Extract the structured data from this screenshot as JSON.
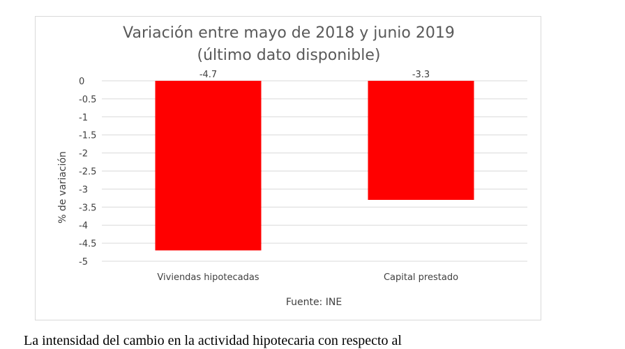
{
  "chart_data": {
    "type": "bar",
    "title": [
      "Variación entre mayo de 2018 y junio 2019",
      "(último dato disponible)"
    ],
    "categories": [
      "Viviendas hipotecadas",
      "Capital prestado"
    ],
    "values": [
      -4.7,
      -3.3
    ],
    "data_labels": [
      "-4.7",
      "-3.3"
    ],
    "ylabel": "% de variación",
    "xlabel": "Fuente: INE",
    "ylim": [
      -5,
      0
    ],
    "yticks": [
      0,
      -0.5,
      -1,
      -1.5,
      -2,
      -2.5,
      -3,
      -3.5,
      -4,
      -4.5,
      -5
    ],
    "ytick_labels": [
      "0",
      "-0.5",
      "-1",
      "-1.5",
      "-2",
      "-2.5",
      "-3",
      "-3.5",
      "-4",
      "-4.5",
      "-5"
    ],
    "bar_color": "#ff0000",
    "grid": true,
    "legend": "none"
  },
  "body_text": "La intensidad del cambio en la actividad hipotecaria con respecto al"
}
